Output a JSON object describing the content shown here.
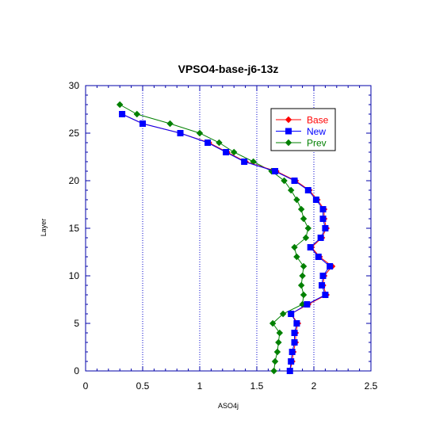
{
  "chart_data": {
    "type": "line",
    "title": "VPSO4-base-j6-13z",
    "xlabel": "ASO4j",
    "ylabel": "Layer",
    "xlim": [
      0,
      2.5
    ],
    "ylim": [
      0,
      30
    ],
    "xticks": [
      "0",
      "0.5",
      "1",
      "1.5",
      "2",
      "2.5"
    ],
    "yticks": [
      "0",
      "5",
      "10",
      "15",
      "20",
      "25",
      "30"
    ],
    "vertical_gridlines_at": [
      0.5,
      1,
      1.5,
      2
    ],
    "legend_position": "top-right",
    "series": [
      {
        "name": "Base",
        "color": "#ff0000",
        "marker": "diamond",
        "points": [
          [
            1.79,
            0
          ],
          [
            1.81,
            1
          ],
          [
            1.82,
            2
          ],
          [
            1.84,
            3
          ],
          [
            1.84,
            4
          ],
          [
            1.86,
            5
          ],
          [
            1.8,
            6
          ],
          [
            1.95,
            7
          ],
          [
            2.11,
            8
          ],
          [
            2.08,
            9
          ],
          [
            2.09,
            10
          ],
          [
            2.16,
            11
          ],
          [
            2.05,
            12
          ],
          [
            1.98,
            13
          ],
          [
            2.07,
            14
          ],
          [
            2.11,
            15
          ],
          [
            2.09,
            16
          ],
          [
            2.09,
            17
          ],
          [
            2.03,
            18
          ],
          [
            1.96,
            19
          ],
          [
            1.84,
            20
          ],
          [
            1.67,
            21
          ],
          [
            1.4,
            22
          ],
          [
            1.24,
            23
          ],
          [
            1.08,
            24
          ],
          [
            0.83,
            25
          ],
          [
            0.5,
            26
          ],
          [
            0.32,
            27
          ]
        ]
      },
      {
        "name": "New",
        "color": "#0000ff",
        "marker": "square",
        "points": [
          [
            1.79,
            0
          ],
          [
            1.8,
            1
          ],
          [
            1.81,
            2
          ],
          [
            1.83,
            3
          ],
          [
            1.83,
            4
          ],
          [
            1.85,
            5
          ],
          [
            1.8,
            6
          ],
          [
            1.94,
            7
          ],
          [
            2.1,
            8
          ],
          [
            2.07,
            9
          ],
          [
            2.08,
            10
          ],
          [
            2.14,
            11
          ],
          [
            2.04,
            12
          ],
          [
            1.97,
            13
          ],
          [
            2.06,
            14
          ],
          [
            2.1,
            15
          ],
          [
            2.08,
            16
          ],
          [
            2.08,
            17
          ],
          [
            2.02,
            18
          ],
          [
            1.95,
            19
          ],
          [
            1.83,
            20
          ],
          [
            1.66,
            21
          ],
          [
            1.39,
            22
          ],
          [
            1.23,
            23
          ],
          [
            1.07,
            24
          ],
          [
            0.83,
            25
          ],
          [
            0.5,
            26
          ],
          [
            0.32,
            27
          ]
        ]
      },
      {
        "name": "Prev",
        "color": "#008000",
        "marker": "diamond",
        "points": [
          [
            1.65,
            0
          ],
          [
            1.66,
            1
          ],
          [
            1.68,
            2
          ],
          [
            1.69,
            3
          ],
          [
            1.7,
            4
          ],
          [
            1.64,
            5
          ],
          [
            1.73,
            6
          ],
          [
            1.9,
            7
          ],
          [
            1.91,
            8
          ],
          [
            1.89,
            9
          ],
          [
            1.9,
            10
          ],
          [
            1.91,
            11
          ],
          [
            1.85,
            12
          ],
          [
            1.83,
            13
          ],
          [
            1.93,
            14
          ],
          [
            1.95,
            15
          ],
          [
            1.91,
            16
          ],
          [
            1.89,
            17
          ],
          [
            1.85,
            18
          ],
          [
            1.8,
            19
          ],
          [
            1.74,
            20
          ],
          [
            1.63,
            21
          ],
          [
            1.47,
            22
          ],
          [
            1.3,
            23
          ],
          [
            1.17,
            24
          ],
          [
            1.0,
            25
          ],
          [
            0.74,
            26
          ],
          [
            0.45,
            27
          ],
          [
            0.3,
            28
          ]
        ]
      }
    ]
  }
}
